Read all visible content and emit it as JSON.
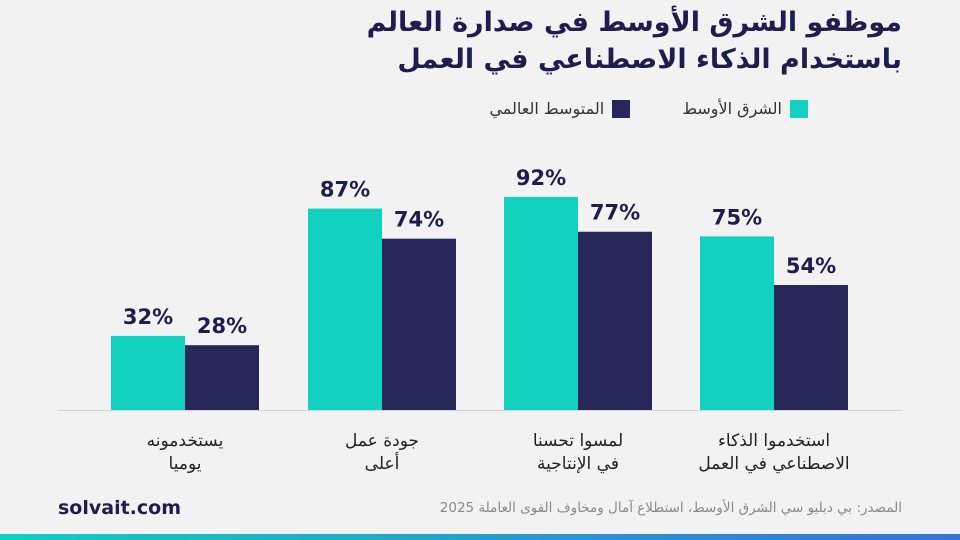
{
  "title_lines": [
    "موظفو الشرق الأوسط في صدارة العالم",
    "باستخدام الذكاء الاصطناعي في العمل"
  ],
  "legend": {
    "middle_east": "الشرق الأوسط",
    "global_average": "المتوسط العالمي"
  },
  "colors": {
    "middle_east": "#12d2bf",
    "global_average": "#282759",
    "text": "#1f1d4d",
    "background": "#f2f2f2"
  },
  "footer": {
    "brand": "solvait.com",
    "source": "المصدر: بي دبليو سي الشرق الأوسط، استطلاع آمال ومخاوف القوى العاملة 2025"
  },
  "chart_data": {
    "type": "bar",
    "title": "موظفو الشرق الأوسط في صدارة العالم باستخدام الذكاء الاصطناعي في العمل",
    "categories": [
      [
        "يستخدمونه",
        "يوميا"
      ],
      [
        "جودة عمل",
        "أعلى"
      ],
      [
        "لمسوا تحسنا",
        "في الإنتاجية"
      ],
      [
        "استخدموا الذكاء",
        "الاصطناعي في العمل"
      ]
    ],
    "series": [
      {
        "name": "الشرق الأوسط",
        "values": [
          32,
          87,
          92,
          75
        ]
      },
      {
        "name": "المتوسط العالمي",
        "values": [
          28,
          74,
          77,
          54
        ]
      }
    ],
    "value_suffix": "%",
    "ylim": [
      0,
      100
    ],
    "grid": false,
    "legend_position": "top-right"
  }
}
